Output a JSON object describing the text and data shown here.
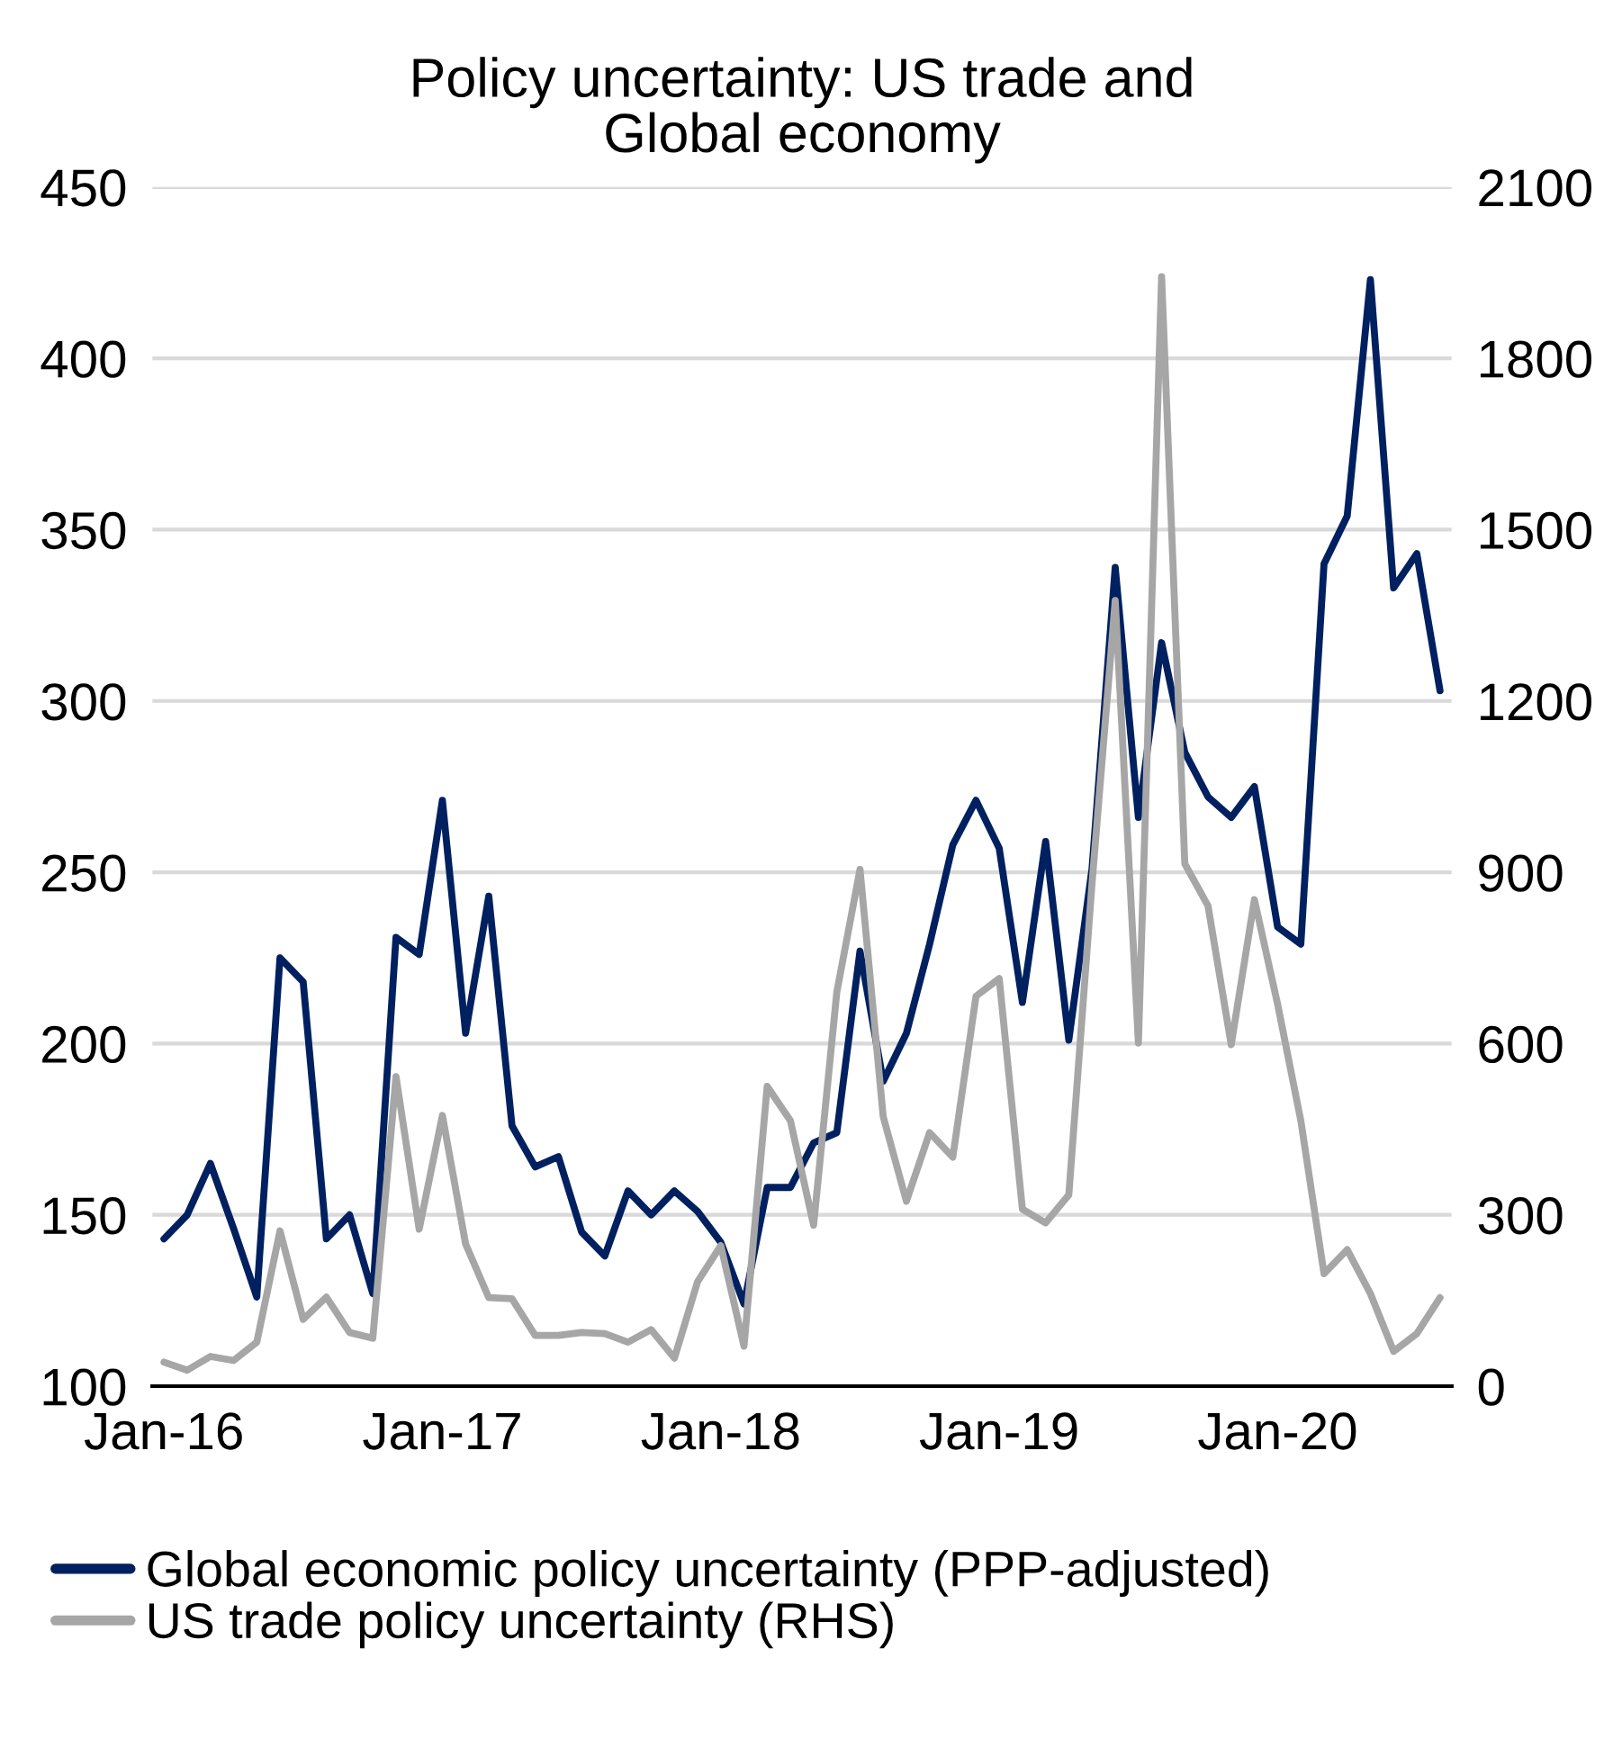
{
  "chart_data": {
    "type": "line",
    "title": "Policy uncertainty: US trade and\nGlobal economy",
    "categories": [
      "Jan-16",
      null,
      null,
      null,
      null,
      null,
      null,
      null,
      null,
      null,
      null,
      null,
      "Jan-17",
      null,
      null,
      null,
      null,
      null,
      null,
      null,
      null,
      null,
      null,
      null,
      "Jan-18",
      null,
      null,
      null,
      null,
      null,
      null,
      null,
      null,
      null,
      null,
      null,
      "Jan-19",
      null,
      null,
      null,
      null,
      null,
      null,
      null,
      null,
      null,
      null,
      null,
      "Jan-20",
      null,
      null,
      null,
      null,
      null,
      null,
      null
    ],
    "series": [
      {
        "name": "Global economic policy uncertainty (PPP-adjusted)",
        "color": "#002060",
        "values": [
          143,
          150,
          165,
          146,
          126,
          225,
          218,
          143,
          150,
          127,
          231,
          226,
          271,
          203,
          243,
          176,
          164,
          167,
          145,
          138,
          157,
          150,
          157,
          151,
          142,
          124,
          158,
          158,
          171,
          174,
          227,
          189,
          203,
          229,
          258,
          271,
          257,
          212,
          259,
          201,
          251,
          339,
          266,
          317,
          285,
          272,
          266,
          275,
          234,
          229,
          340,
          354,
          423,
          333,
          343,
          303
        ]
      },
      {
        "name": "US trade policy uncertainty (RHS)",
        "color": "#a6a6a6",
        "axis": "y2",
        "values": [
          42,
          28,
          52,
          45,
          77,
          272,
          117,
          156,
          94,
          84,
          542,
          275,
          474,
          249,
          155,
          153,
          89,
          89,
          94,
          92,
          77,
          99,
          49,
          183,
          246,
          70,
          525,
          465,
          282,
          690,
          905,
          472,
          324,
          444,
          401,
          683,
          714,
          310,
          286,
          335,
          880,
          1376,
          601,
          1943,
          915,
          841,
          598,
          852,
          669,
          465,
          197,
          239,
          162,
          61,
          92,
          155
        ]
      }
    ],
    "ylim": [
      100,
      450
    ],
    "yticks": [
      100,
      150,
      200,
      250,
      300,
      350,
      400,
      450
    ],
    "y2lim": [
      0,
      2100
    ],
    "y2ticks": [
      0,
      300,
      600,
      900,
      1200,
      1500,
      1800,
      2100
    ],
    "grid": "y",
    "legend": "bottom",
    "line_style": "solid",
    "marker": "none"
  }
}
